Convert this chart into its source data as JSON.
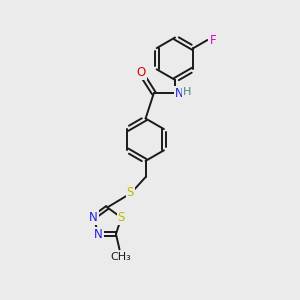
{
  "background_color": "#ebebeb",
  "bond_color": "#1a1a1a",
  "atom_colors": {
    "O": "#dd0000",
    "N": "#2222dd",
    "S": "#bbbb00",
    "F": "#dd00dd",
    "H": "#448888",
    "C": "#1a1a1a"
  },
  "lw": 1.4,
  "ring_r": 0.72,
  "thia_r": 0.5
}
